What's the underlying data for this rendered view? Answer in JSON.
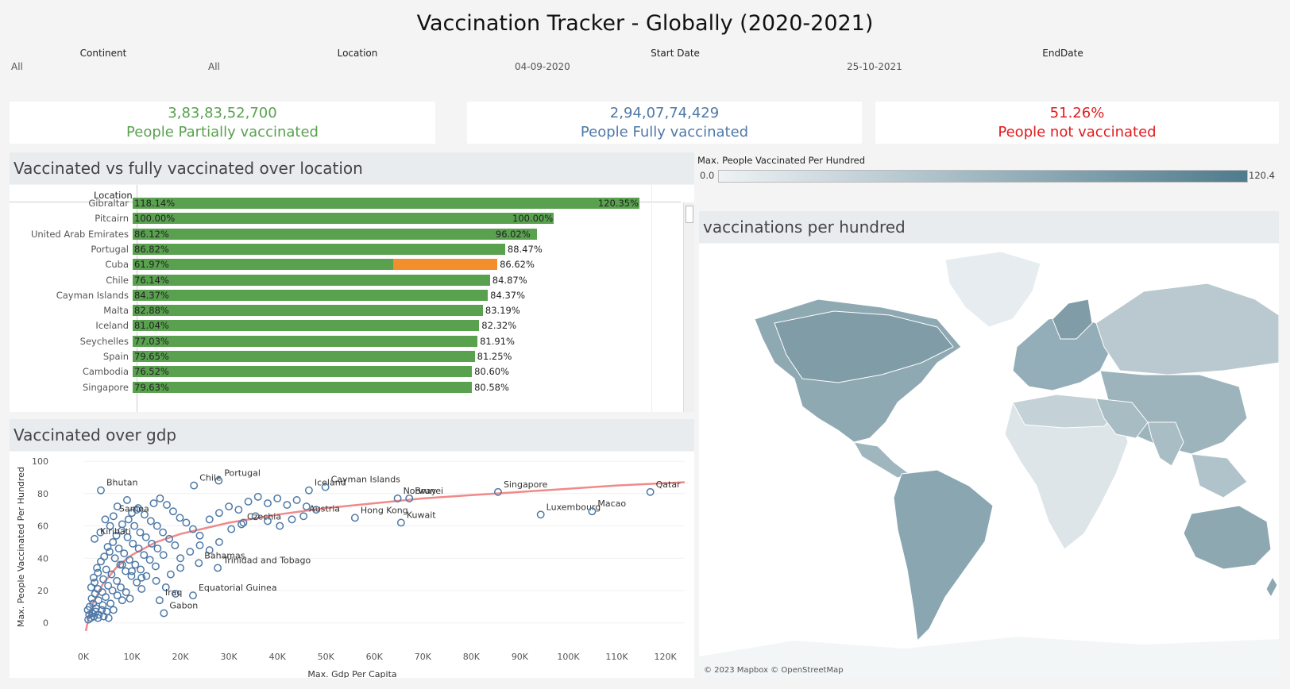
{
  "header": {
    "title": "Vaccination Tracker - Globally (2020-2021)"
  },
  "filters": {
    "continent": {
      "label": "Continent",
      "value": "All"
    },
    "location": {
      "label": "Location",
      "value": "All"
    },
    "start_date": {
      "label": "Start Date",
      "value": "04-09-2020"
    },
    "end_date": {
      "label": "EndDate",
      "value": "25-10-2021"
    }
  },
  "kpis": {
    "partial": {
      "value": "3,83,83,52,700",
      "label": "People Partially vaccinated",
      "color": "#59a14f"
    },
    "full": {
      "value": "2,94,07,74,429",
      "label": "People Fully vaccinated",
      "color": "#4e79a7"
    },
    "not": {
      "value": "51.26%",
      "label": "People not vaccinated",
      "color": "#e31a1c"
    }
  },
  "bar_panel": {
    "title": "Vaccinated vs fully vaccinated over location",
    "column_header": "Location",
    "colors": {
      "bar": "#59a14f",
      "highlight": "#f28e2b"
    },
    "chart_data": {
      "type": "bar",
      "categories": [
        "Gibraltar",
        "Pitcairn",
        "United Arab Emirates",
        "Portugal",
        "Cuba",
        "Chile",
        "Cayman Islands",
        "Malta",
        "Iceland",
        "Seychelles",
        "Spain",
        "Cambodia",
        "Singapore"
      ],
      "series": [
        {
          "values": [
            118.14,
            100.0,
            86.12,
            86.82,
            61.97,
            76.14,
            84.37,
            82.88,
            81.04,
            77.03,
            79.65,
            76.52,
            79.63
          ]
        },
        {
          "values": [
            120.35,
            100.0,
            96.02,
            88.47,
            86.62,
            84.87,
            84.37,
            83.19,
            82.32,
            81.91,
            81.25,
            80.6,
            80.58
          ]
        }
      ],
      "labels_inner": [
        "118.14%",
        "100.00%",
        "86.12%",
        "86.82%",
        "61.97%",
        "76.14%",
        "84.37%",
        "82.88%",
        "81.04%",
        "77.03%",
        "79.65%",
        "76.52%",
        "79.63%"
      ],
      "labels_outer": [
        "120.35%",
        "100.00%",
        "96.02%",
        "88.47%",
        "86.62%",
        "84.87%",
        "84.37%",
        "83.19%",
        "82.32%",
        "81.91%",
        "81.25%",
        "80.60%",
        "80.58%"
      ]
    }
  },
  "scatter_panel": {
    "title": "Vaccinated over gdp",
    "chart_data": {
      "type": "scatter",
      "xlabel": "Max. Gdp Per Capita",
      "ylabel": "Max. People Vaccinated Per Hundred",
      "xlim": [
        0,
        124000
      ],
      "ylim": [
        -8,
        102
      ],
      "xticks": [
        "0K",
        "10K",
        "20K",
        "30K",
        "40K",
        "50K",
        "60K",
        "70K",
        "80K",
        "90K",
        "100K",
        "110K",
        "120K"
      ],
      "yticks": [
        "0",
        "20",
        "40",
        "60",
        "80",
        "100"
      ],
      "colors": {
        "point": "#4e79a7",
        "trend": "#f08a8a"
      },
      "labeled_points": [
        {
          "name": "Bhutan",
          "x": 3600,
          "y": 82
        },
        {
          "name": "Chile",
          "x": 22800,
          "y": 85
        },
        {
          "name": "Portugal",
          "x": 27900,
          "y": 88
        },
        {
          "name": "Iceland",
          "x": 46500,
          "y": 82
        },
        {
          "name": "Cayman Islands",
          "x": 49900,
          "y": 84
        },
        {
          "name": "Samoa",
          "x": 6200,
          "y": 66
        },
        {
          "name": "Kiribati",
          "x": 2300,
          "y": 52
        },
        {
          "name": "Norway",
          "x": 64800,
          "y": 77
        },
        {
          "name": "Brunei",
          "x": 67200,
          "y": 77
        },
        {
          "name": "Singapore",
          "x": 85500,
          "y": 81
        },
        {
          "name": "Qatar",
          "x": 116900,
          "y": 81
        },
        {
          "name": "Luxembourg",
          "x": 94300,
          "y": 67
        },
        {
          "name": "Macao",
          "x": 104900,
          "y": 69
        },
        {
          "name": "Austria",
          "x": 45400,
          "y": 66
        },
        {
          "name": "Hong Kong",
          "x": 56000,
          "y": 65
        },
        {
          "name": "Kuwait",
          "x": 65500,
          "y": 62
        },
        {
          "name": "Czechia",
          "x": 32600,
          "y": 61
        },
        {
          "name": "Trinidad and Tobago",
          "x": 27700,
          "y": 34
        },
        {
          "name": "Bahamas",
          "x": 23800,
          "y": 37
        },
        {
          "name": "Equatorial Guinea",
          "x": 22600,
          "y": 17
        },
        {
          "name": "Iraq",
          "x": 15700,
          "y": 14
        },
        {
          "name": "Gabon",
          "x": 16600,
          "y": 6
        }
      ],
      "points": [
        [
          1000,
          2
        ],
        [
          1200,
          5
        ],
        [
          900,
          8
        ],
        [
          1500,
          3
        ],
        [
          1800,
          6
        ],
        [
          2200,
          4
        ],
        [
          2500,
          7
        ],
        [
          3000,
          3
        ],
        [
          1300,
          10
        ],
        [
          2000,
          12
        ],
        [
          2600,
          9
        ],
        [
          3200,
          5
        ],
        [
          3800,
          8
        ],
        [
          4200,
          4
        ],
        [
          1700,
          15
        ],
        [
          2400,
          18
        ],
        [
          3100,
          14
        ],
        [
          4000,
          11
        ],
        [
          4800,
          7
        ],
        [
          5200,
          3
        ],
        [
          1600,
          22
        ],
        [
          2300,
          25
        ],
        [
          3000,
          21
        ],
        [
          3900,
          19
        ],
        [
          4600,
          16
        ],
        [
          5600,
          12
        ],
        [
          6200,
          8
        ],
        [
          2100,
          28
        ],
        [
          3000,
          31
        ],
        [
          4100,
          27
        ],
        [
          5100,
          23
        ],
        [
          6000,
          20
        ],
        [
          7000,
          17
        ],
        [
          8000,
          14
        ],
        [
          2800,
          34
        ],
        [
          3600,
          38
        ],
        [
          4700,
          33
        ],
        [
          5800,
          30
        ],
        [
          6900,
          26
        ],
        [
          7700,
          22
        ],
        [
          8800,
          19
        ],
        [
          9600,
          15
        ],
        [
          4300,
          41
        ],
        [
          5400,
          44
        ],
        [
          6500,
          40
        ],
        [
          7600,
          36
        ],
        [
          8700,
          32
        ],
        [
          9900,
          29
        ],
        [
          11000,
          25
        ],
        [
          12000,
          21
        ],
        [
          5000,
          47
        ],
        [
          6100,
          50
        ],
        [
          7300,
          46
        ],
        [
          8400,
          43
        ],
        [
          9500,
          39
        ],
        [
          10700,
          36
        ],
        [
          11800,
          33
        ],
        [
          13000,
          29
        ],
        [
          6800,
          54
        ],
        [
          7900,
          57
        ],
        [
          9100,
          53
        ],
        [
          10200,
          49
        ],
        [
          11400,
          46
        ],
        [
          12500,
          42
        ],
        [
          13700,
          39
        ],
        [
          14900,
          35
        ],
        [
          8000,
          61
        ],
        [
          9300,
          64
        ],
        [
          10500,
          60
        ],
        [
          11700,
          56
        ],
        [
          12900,
          53
        ],
        [
          14100,
          49
        ],
        [
          15300,
          46
        ],
        [
          16500,
          42
        ],
        [
          10000,
          68
        ],
        [
          11300,
          71
        ],
        [
          12600,
          67
        ],
        [
          13900,
          63
        ],
        [
          15200,
          60
        ],
        [
          16400,
          56
        ],
        [
          17700,
          52
        ],
        [
          18900,
          48
        ],
        [
          14500,
          74
        ],
        [
          15800,
          77
        ],
        [
          17200,
          73
        ],
        [
          18500,
          69
        ],
        [
          19900,
          65
        ],
        [
          21200,
          62
        ],
        [
          22600,
          58
        ],
        [
          24000,
          54
        ],
        [
          26000,
          64
        ],
        [
          28000,
          68
        ],
        [
          30000,
          72
        ],
        [
          32000,
          70
        ],
        [
          34000,
          75
        ],
        [
          36000,
          78
        ],
        [
          38000,
          74
        ],
        [
          40000,
          77
        ],
        [
          42000,
          73
        ],
        [
          44000,
          76
        ],
        [
          46000,
          72
        ],
        [
          48000,
          70
        ],
        [
          30500,
          58
        ],
        [
          33000,
          62
        ],
        [
          35500,
          66
        ],
        [
          38000,
          63
        ],
        [
          40500,
          60
        ],
        [
          43000,
          64
        ],
        [
          20000,
          40
        ],
        [
          22000,
          44
        ],
        [
          24000,
          48
        ],
        [
          26000,
          45
        ],
        [
          28000,
          50
        ],
        [
          18000,
          30
        ],
        [
          20000,
          34
        ],
        [
          15000,
          26
        ],
        [
          17000,
          22
        ],
        [
          19000,
          18
        ],
        [
          8000,
          36
        ],
        [
          10000,
          32
        ],
        [
          12000,
          28
        ],
        [
          3500,
          56
        ],
        [
          5500,
          60
        ],
        [
          4500,
          64
        ],
        [
          7000,
          72
        ],
        [
          9000,
          76
        ],
        [
          11000,
          70
        ]
      ],
      "trend": [
        [
          500,
          -5
        ],
        [
          1000,
          2
        ],
        [
          2000,
          12
        ],
        [
          4000,
          24
        ],
        [
          7000,
          35
        ],
        [
          10000,
          42
        ],
        [
          15000,
          50
        ],
        [
          20000,
          55
        ],
        [
          30000,
          62
        ],
        [
          40000,
          67
        ],
        [
          50000,
          71
        ],
        [
          60000,
          74
        ],
        [
          70000,
          77
        ],
        [
          80000,
          79
        ],
        [
          90000,
          81
        ],
        [
          100000,
          83
        ],
        [
          110000,
          85
        ],
        [
          124000,
          87
        ]
      ]
    }
  },
  "legend": {
    "title": "Max. People Vaccinated Per Hundred",
    "min_label": "0.0",
    "max_label": "120.4",
    "color_low": "#eef2f4",
    "color_high": "#4f7b8c"
  },
  "map_panel": {
    "title": "vaccinations per hundred",
    "attribution": "© 2023 Mapbox © OpenStreetMap"
  }
}
